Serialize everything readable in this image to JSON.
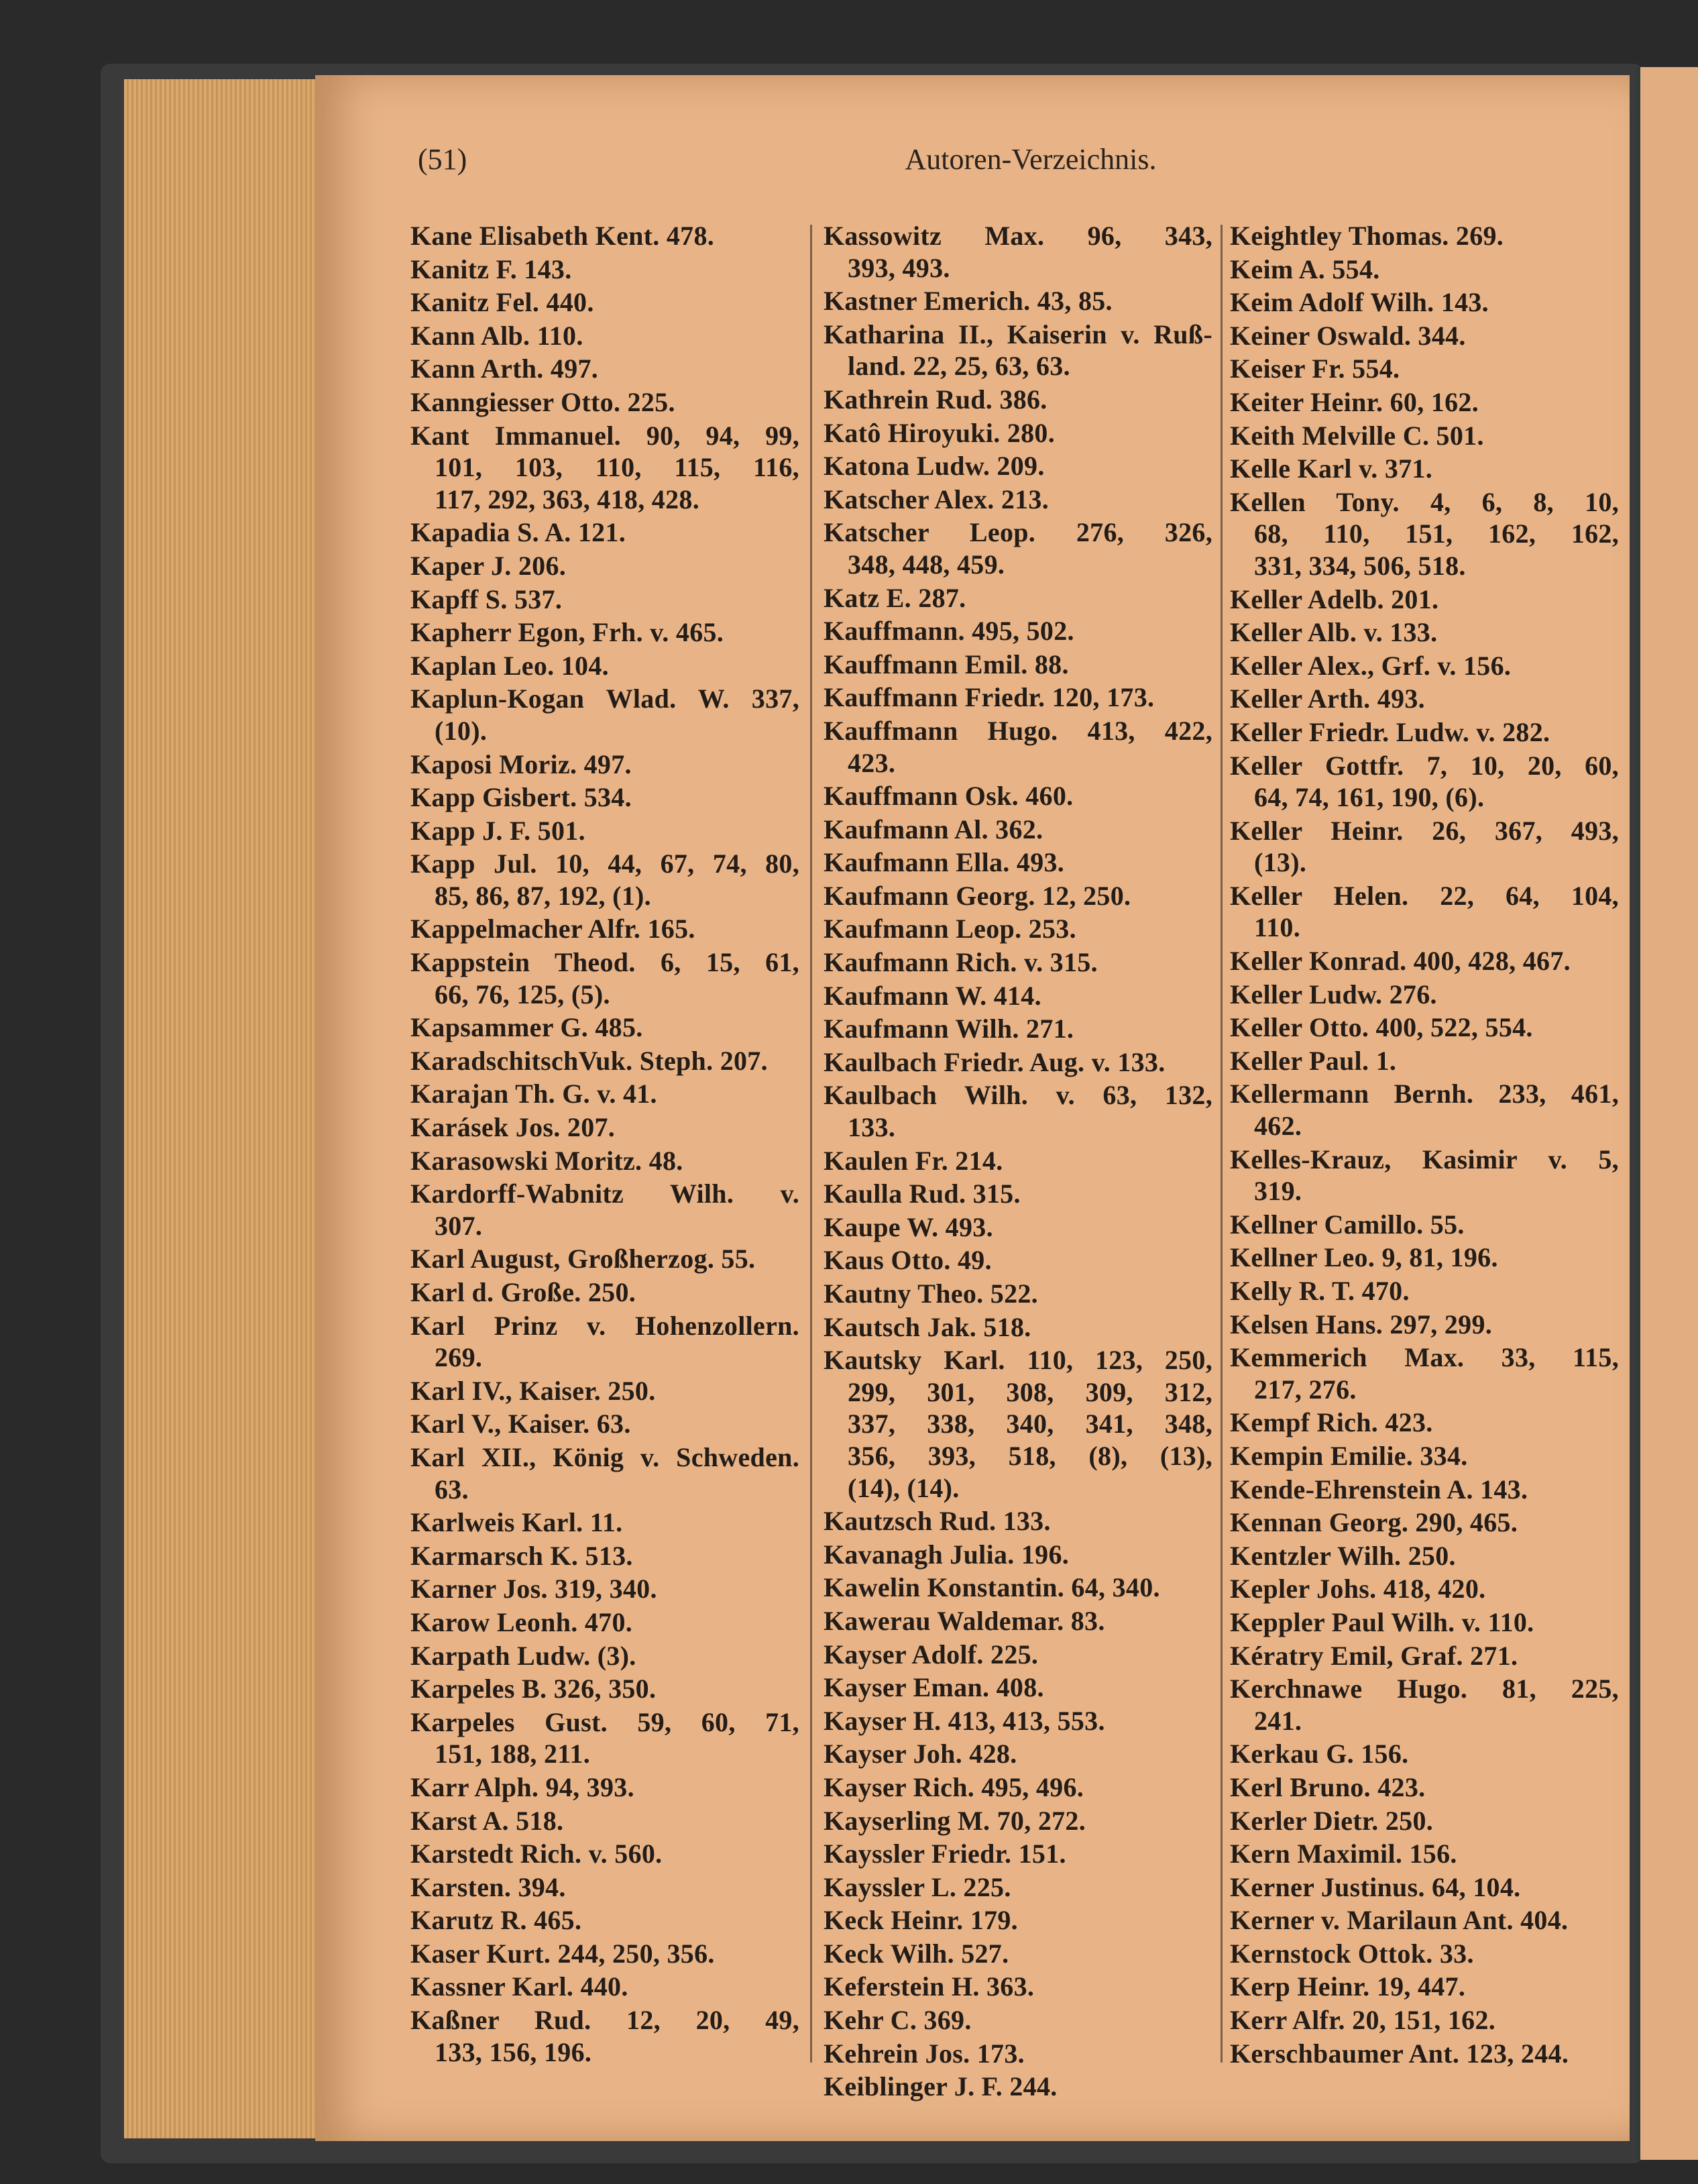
{
  "header": {
    "page_number": "(51)",
    "title": "Autoren-Verzeichnis."
  },
  "columns": [
    {
      "entries": [
        [
          "Kane Elisabeth Kent. 478."
        ],
        [
          "Kanitz F. 143."
        ],
        [
          "Kanitz Fel. 440."
        ],
        [
          "Kann Alb. 110."
        ],
        [
          "Kann Arth. 497."
        ],
        [
          "Kanngiesser Otto. 225."
        ],
        [
          "Kant Immanuel. 90, 94, 99,",
          "101, 103, 110, 115, 116,",
          "117, 292, 363, 418, 428."
        ],
        [
          "Kapadia S. A. 121."
        ],
        [
          "Kaper J. 206."
        ],
        [
          "Kapff S. 537."
        ],
        [
          "Kapherr Egon, Frh. v. 465."
        ],
        [
          "Kaplan Leo. 104."
        ],
        [
          "Kaplun-Kogan Wlad. W. 337,",
          "(10)."
        ],
        [
          "Kaposi Moriz. 497."
        ],
        [
          "Kapp Gisbert. 534."
        ],
        [
          "Kapp J. F. 501."
        ],
        [
          "Kapp Jul. 10, 44, 67, 74, 80,",
          "85, 86, 87, 192, (1)."
        ],
        [
          "Kappelmacher Alfr. 165."
        ],
        [
          "Kappstein Theod. 6, 15, 61,",
          "66, 76, 125, (5)."
        ],
        [
          "Kapsammer G. 485."
        ],
        [
          "KaradschitschVuk. Steph. 207."
        ],
        [
          "Karajan Th. G. v. 41."
        ],
        [
          "Karásek Jos. 207."
        ],
        [
          "Karasowski Moritz. 48."
        ],
        [
          "Kardorff-Wabnitz Wilh. v.",
          "307."
        ],
        [
          "Karl August, Großherzog. 55."
        ],
        [
          "Karl d. Große. 250."
        ],
        [
          "Karl Prinz v. Hohenzollern.",
          "269."
        ],
        [
          "Karl IV., Kaiser. 250."
        ],
        [
          "Karl V., Kaiser. 63."
        ],
        [
          "Karl XII., König v. Schweden.",
          "63."
        ],
        [
          "Karlweis Karl. 11."
        ],
        [
          "Karmarsch K. 513."
        ],
        [
          "Karner Jos. 319, 340."
        ],
        [
          "Karow Leonh. 470."
        ],
        [
          "Karpath Ludw. (3)."
        ],
        [
          "Karpeles B. 326, 350."
        ],
        [
          "Karpeles Gust. 59, 60, 71,",
          "151, 188, 211."
        ],
        [
          "Karr Alph. 94, 393."
        ],
        [
          "Karst A. 518."
        ],
        [
          "Karstedt Rich. v. 560."
        ],
        [
          "Karsten. 394."
        ],
        [
          "Karutz R. 465."
        ],
        [
          "Kaser Kurt. 244, 250, 356."
        ],
        [
          "Kassner Karl. 440."
        ],
        [
          "Kaßner Rud. 12, 20, 49,",
          "133, 156, 196."
        ]
      ]
    },
    {
      "entries": [
        [
          "Kassowitz Max. 96, 343,",
          "393, 493."
        ],
        [
          "Kastner Emerich. 43, 85."
        ],
        [
          "Katharina II., Kaiserin v. Ruß-",
          "land. 22, 25, 63, 63."
        ],
        [
          "Kathrein Rud. 386."
        ],
        [
          "Katô Hiroyuki. 280."
        ],
        [
          "Katona Ludw. 209."
        ],
        [
          "Katscher Alex. 213."
        ],
        [
          "Katscher Leop. 276, 326,",
          "348, 448, 459."
        ],
        [
          "Katz E. 287."
        ],
        [
          "Kauffmann. 495, 502."
        ],
        [
          "Kauffmann Emil. 88."
        ],
        [
          "Kauffmann Friedr. 120, 173."
        ],
        [
          "Kauffmann Hugo. 413, 422,",
          "423."
        ],
        [
          "Kauffmann Osk. 460."
        ],
        [
          "Kaufmann Al. 362."
        ],
        [
          "Kaufmann Ella. 493."
        ],
        [
          "Kaufmann Georg. 12, 250."
        ],
        [
          "Kaufmann Leop. 253."
        ],
        [
          "Kaufmann Rich. v. 315."
        ],
        [
          "Kaufmann W. 414."
        ],
        [
          "Kaufmann Wilh. 271."
        ],
        [
          "Kaulbach Friedr. Aug. v. 133."
        ],
        [
          "Kaulbach Wilh. v. 63, 132,",
          "133."
        ],
        [
          "Kaulen Fr. 214."
        ],
        [
          "Kaulla Rud. 315."
        ],
        [
          "Kaupe W. 493."
        ],
        [
          "Kaus Otto. 49."
        ],
        [
          "Kautny Theo. 522."
        ],
        [
          "Kautsch Jak. 518."
        ],
        [
          "Kautsky Karl. 110, 123, 250,",
          "299, 301, 308, 309, 312,",
          "337, 338, 340, 341, 348,",
          "356, 393, 518, (8), (13),",
          "(14), (14)."
        ],
        [
          "Kautzsch Rud. 133."
        ],
        [
          "Kavanagh Julia. 196."
        ],
        [
          "Kawelin Konstantin. 64, 340."
        ],
        [
          "Kawerau Waldemar. 83."
        ],
        [
          "Kayser Adolf. 225."
        ],
        [
          "Kayser Eman. 408."
        ],
        [
          "Kayser H. 413, 413, 553."
        ],
        [
          "Kayser Joh. 428."
        ],
        [
          "Kayser Rich. 495, 496."
        ],
        [
          "Kayserling M. 70, 272."
        ],
        [
          "Kayssler Friedr. 151."
        ],
        [
          "Kayssler L. 225."
        ],
        [
          "Keck Heinr. 179."
        ],
        [
          "Keck Wilh. 527."
        ],
        [
          "Keferstein H. 363."
        ],
        [
          "Kehr C. 369."
        ],
        [
          "Kehrein Jos. 173."
        ],
        [
          "Keiblinger J. F. 244."
        ]
      ]
    },
    {
      "entries": [
        [
          "Keightley Thomas. 269."
        ],
        [
          "Keim A. 554."
        ],
        [
          "Keim Adolf Wilh. 143."
        ],
        [
          "Keiner Oswald. 344."
        ],
        [
          "Keiser Fr. 554."
        ],
        [
          "Keiter Heinr. 60, 162."
        ],
        [
          "Keith Melville C. 501."
        ],
        [
          "Kelle Karl v. 371."
        ],
        [
          "Kellen Tony. 4, 6, 8, 10,",
          "68, 110, 151, 162, 162,",
          "331, 334, 506, 518."
        ],
        [
          "Keller Adelb. 201."
        ],
        [
          "Keller Alb. v. 133."
        ],
        [
          "Keller Alex., Grf. v. 156."
        ],
        [
          "Keller Arth. 493."
        ],
        [
          "Keller Friedr. Ludw. v. 282."
        ],
        [
          "Keller Gottfr. 7, 10, 20, 60,",
          "64, 74, 161, 190, (6)."
        ],
        [
          "Keller Heinr. 26, 367, 493,",
          "(13)."
        ],
        [
          "Keller Helen. 22, 64, 104,",
          "110."
        ],
        [
          "Keller Konrad. 400, 428, 467."
        ],
        [
          "Keller Ludw. 276."
        ],
        [
          "Keller Otto. 400, 522, 554."
        ],
        [
          "Keller Paul. 1."
        ],
        [
          "Kellermann Bernh. 233, 461,",
          "462."
        ],
        [
          "Kelles-Krauz, Kasimir v. 5,",
          "319."
        ],
        [
          "Kellner Camillo. 55."
        ],
        [
          "Kellner Leo. 9, 81, 196."
        ],
        [
          "Kelly R. T. 470."
        ],
        [
          "Kelsen Hans. 297, 299."
        ],
        [
          "Kemmerich Max. 33, 115,",
          "217, 276."
        ],
        [
          "Kempf Rich. 423."
        ],
        [
          "Kempin Emilie. 334."
        ],
        [
          "Kende-Ehrenstein A. 143."
        ],
        [
          "Kennan Georg. 290, 465."
        ],
        [
          "Kentzler Wilh. 250."
        ],
        [
          "Kepler Johs. 418, 420."
        ],
        [
          "Keppler Paul Wilh. v. 110."
        ],
        [
          "Kératry Emil, Graf. 271."
        ],
        [
          "Kerchnawe Hugo. 81, 225,",
          "241."
        ],
        [
          "Kerkau G. 156."
        ],
        [
          "Kerl Bruno. 423."
        ],
        [
          "Kerler Dietr. 250."
        ],
        [
          "Kern Maximil. 156."
        ],
        [
          "Kerner Justinus. 64, 104."
        ],
        [
          "Kerner v. Marilaun Ant. 404."
        ],
        [
          "Kernstock Ottok. 33."
        ],
        [
          "Kerp Heinr. 19, 447."
        ],
        [
          "Kerr Alfr. 20, 151, 162."
        ],
        [
          "Kerschbaumer Ant. 123, 244."
        ]
      ]
    }
  ]
}
